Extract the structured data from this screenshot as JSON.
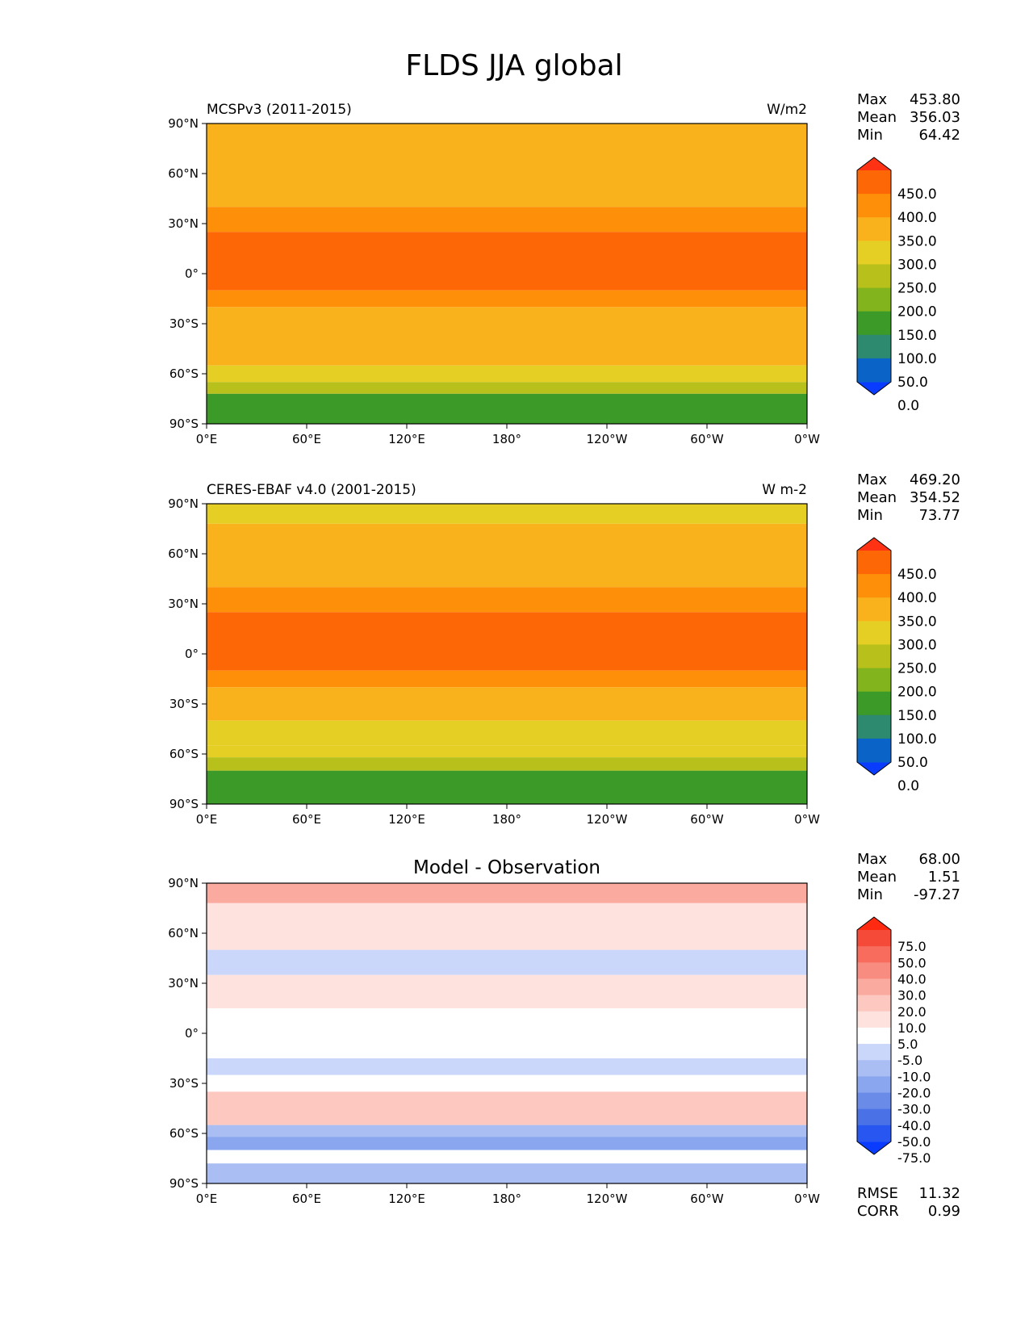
{
  "figure": {
    "title": "FLDS JJA global"
  },
  "chart_data": [
    {
      "type": "heatmap",
      "left_title": "MCSPv3 (2011-2015)",
      "center_title": "",
      "units": "W/m2",
      "stats": [
        {
          "label": "Max",
          "value": "453.80"
        },
        {
          "label": "Mean",
          "value": "356.03"
        },
        {
          "label": "Min",
          "value": "64.42"
        }
      ],
      "colorbar": {
        "tick_labels": [
          "450.0",
          "400.0",
          "350.0",
          "300.0",
          "250.0",
          "200.0",
          "150.0",
          "100.0",
          "50.0",
          "0.0"
        ],
        "colors": [
          "#0a3cff",
          "#0a64c8",
          "#2e8a6e",
          "#3c9a28",
          "#82b41e",
          "#b8c11b",
          "#e6cf24",
          "#f9b21c",
          "#fe9009",
          "#fe6705",
          "#ff3314"
        ]
      },
      "xticks": [
        "0°E",
        "60°E",
        "120°E",
        "180°",
        "120°W",
        "60°W",
        "0°W"
      ],
      "yticks": [
        "90°N",
        "60°N",
        "30°N",
        "0°",
        "30°S",
        "60°S",
        "90°S"
      ],
      "lat_bands": [
        {
          "lat_top": 90,
          "lat_bottom": 75,
          "value": 330
        },
        {
          "lat_top": 75,
          "lat_bottom": 40,
          "value": 320
        },
        {
          "lat_top": 40,
          "lat_bottom": 25,
          "value": 360
        },
        {
          "lat_top": 25,
          "lat_bottom": -10,
          "value": 410
        },
        {
          "lat_top": -10,
          "lat_bottom": -20,
          "value": 370
        },
        {
          "lat_top": -20,
          "lat_bottom": -45,
          "value": 320
        },
        {
          "lat_top": -45,
          "lat_bottom": -55,
          "value": 300
        },
        {
          "lat_top": -55,
          "lat_bottom": -65,
          "value": 270
        },
        {
          "lat_top": -65,
          "lat_bottom": -72,
          "value": 200
        },
        {
          "lat_top": -72,
          "lat_bottom": -90,
          "value": 120
        }
      ]
    },
    {
      "type": "heatmap",
      "left_title": "CERES-EBAF v4.0 (2001-2015)",
      "center_title": "",
      "units": "W m-2",
      "stats": [
        {
          "label": "Max",
          "value": "469.20"
        },
        {
          "label": "Mean",
          "value": "354.52"
        },
        {
          "label": "Min",
          "value": "73.77"
        }
      ],
      "colorbar": {
        "tick_labels": [
          "450.0",
          "400.0",
          "350.0",
          "300.0",
          "250.0",
          "200.0",
          "150.0",
          "100.0",
          "50.0",
          "0.0"
        ],
        "colors": [
          "#0a3cff",
          "#0a64c8",
          "#2e8a6e",
          "#3c9a28",
          "#82b41e",
          "#b8c11b",
          "#e6cf24",
          "#f9b21c",
          "#fe9009",
          "#fe6705",
          "#ff3314"
        ]
      },
      "xticks": [
        "0°E",
        "60°E",
        "120°E",
        "180°",
        "120°W",
        "60°W",
        "0°W"
      ],
      "yticks": [
        "90°N",
        "60°N",
        "30°N",
        "0°",
        "30°S",
        "60°S",
        "90°S"
      ],
      "lat_bands": [
        {
          "lat_top": 90,
          "lat_bottom": 78,
          "value": 290
        },
        {
          "lat_top": 78,
          "lat_bottom": 40,
          "value": 320
        },
        {
          "lat_top": 40,
          "lat_bottom": 25,
          "value": 360
        },
        {
          "lat_top": 25,
          "lat_bottom": -10,
          "value": 410
        },
        {
          "lat_top": -10,
          "lat_bottom": -20,
          "value": 370
        },
        {
          "lat_top": -20,
          "lat_bottom": -40,
          "value": 320
        },
        {
          "lat_top": -40,
          "lat_bottom": -55,
          "value": 290
        },
        {
          "lat_top": -55,
          "lat_bottom": -62,
          "value": 260
        },
        {
          "lat_top": -62,
          "lat_bottom": -70,
          "value": 220
        },
        {
          "lat_top": -70,
          "lat_bottom": -90,
          "value": 130
        }
      ]
    },
    {
      "type": "heatmap",
      "left_title": "",
      "center_title": "Model - Observation",
      "units": "",
      "stats": [
        {
          "label": "Max",
          "value": "68.00"
        },
        {
          "label": "Mean",
          "value": "1.51"
        },
        {
          "label": "Min",
          "value": "-97.27"
        }
      ],
      "colorbar": {
        "tick_labels": [
          "75.0",
          "50.0",
          "40.0",
          "30.0",
          "20.0",
          "10.0",
          "5.0",
          "-5.0",
          "-10.0",
          "-20.0",
          "-30.0",
          "-40.0",
          "-50.0",
          "-75.0"
        ],
        "colors": [
          "#0a3cff",
          "#2856f0",
          "#4a72e6",
          "#6a8ce8",
          "#8aa6ee",
          "#aabef4",
          "#cad6fa",
          "#ffffff",
          "#fde2de",
          "#fcc8c0",
          "#fbaaa0",
          "#f98c80",
          "#f76c5c",
          "#f54a38",
          "#ff2a10"
        ]
      },
      "xticks": [
        "0°E",
        "60°E",
        "120°E",
        "180°",
        "120°W",
        "60°W",
        "0°W"
      ],
      "yticks": [
        "90°N",
        "60°N",
        "30°N",
        "0°",
        "30°S",
        "60°S",
        "90°S"
      ],
      "lat_bands": [
        {
          "lat_top": 90,
          "lat_bottom": 78,
          "value": 22
        },
        {
          "lat_top": 78,
          "lat_bottom": 50,
          "value": 8
        },
        {
          "lat_top": 50,
          "lat_bottom": 35,
          "value": -7
        },
        {
          "lat_top": 35,
          "lat_bottom": 15,
          "value": 7
        },
        {
          "lat_top": 15,
          "lat_bottom": -15,
          "value": 0
        },
        {
          "lat_top": -15,
          "lat_bottom": -25,
          "value": -8
        },
        {
          "lat_top": -25,
          "lat_bottom": -35,
          "value": -3
        },
        {
          "lat_top": -35,
          "lat_bottom": -55,
          "value": 12
        },
        {
          "lat_top": -55,
          "lat_bottom": -62,
          "value": -15
        },
        {
          "lat_top": -62,
          "lat_bottom": -70,
          "value": -30
        },
        {
          "lat_top": -70,
          "lat_bottom": -78,
          "value": -3
        },
        {
          "lat_top": -78,
          "lat_bottom": -90,
          "value": -18
        }
      ],
      "footer_stats": [
        {
          "label": "RMSE",
          "value": "11.32"
        },
        {
          "label": "CORR",
          "value": "0.99"
        }
      ]
    }
  ]
}
